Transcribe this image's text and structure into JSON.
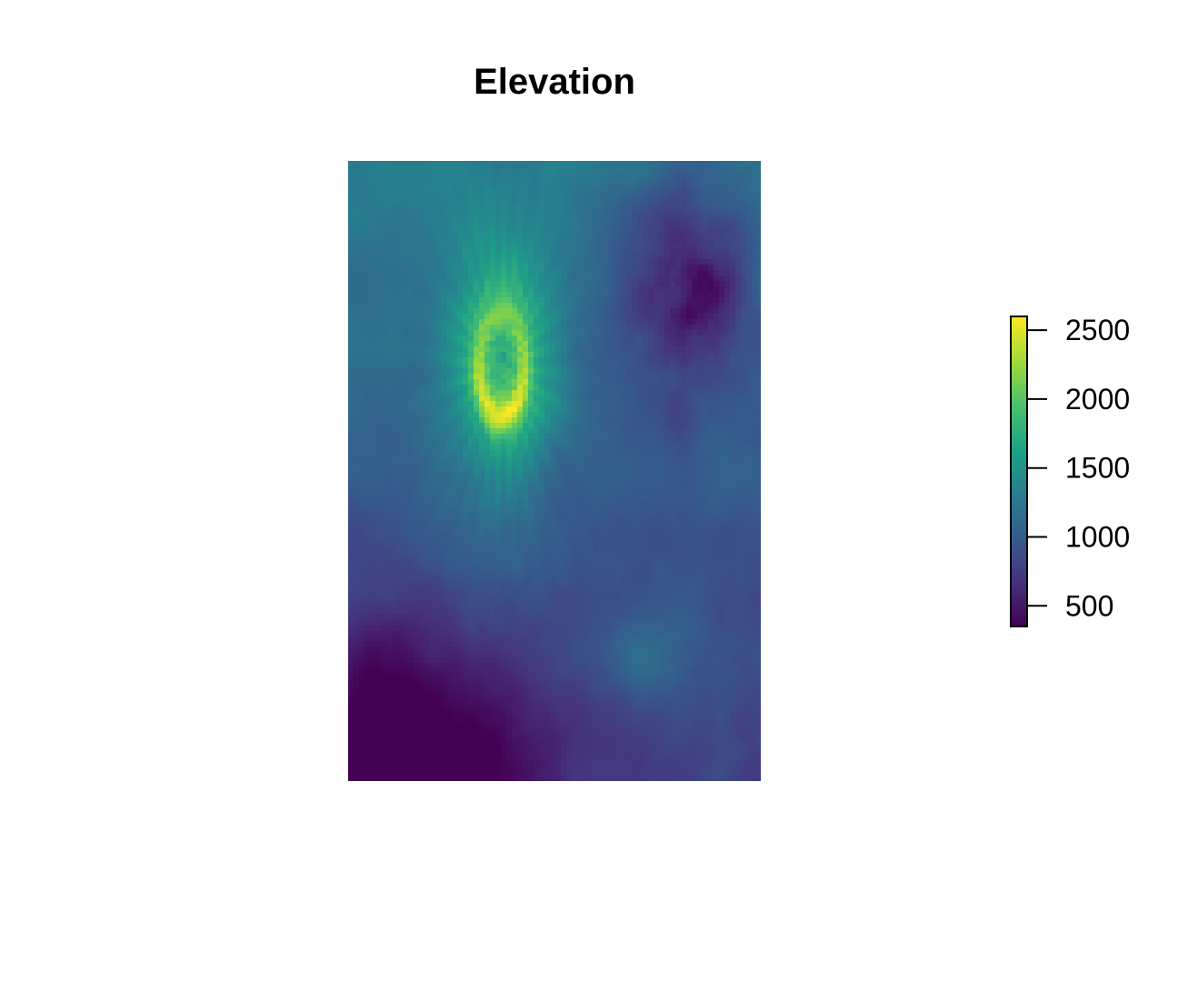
{
  "chart_data": {
    "type": "heatmap",
    "title": "Elevation",
    "xlabel": "",
    "ylabel": "",
    "axes_shown": false,
    "grid": false,
    "legend": {
      "type": "colorbar",
      "placement": "right",
      "ticks": [
        500,
        1000,
        1500,
        2000,
        2500
      ],
      "range": [
        350,
        2600
      ]
    },
    "colormap": [
      "#440154",
      "#46327e",
      "#365c8d",
      "#277f8e",
      "#1fa187",
      "#4ac16d",
      "#a0da39",
      "#fde725"
    ],
    "description_features": {
      "peak": "crater-shaped high ring in upper-left of raster, max ~2500",
      "lowlands": "dark valleys in lower-left and upper-right, min ~350"
    }
  },
  "colors": {
    "background": "#ffffff",
    "text": "#000000",
    "colorbar_border": "#000000"
  }
}
